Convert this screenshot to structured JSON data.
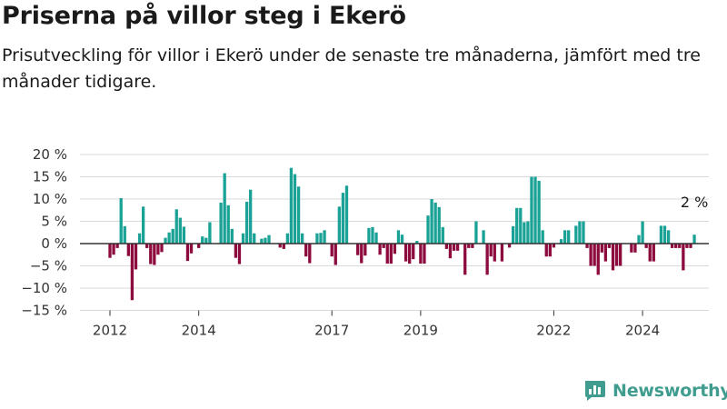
{
  "header": {
    "title": "Priserna på villor steg i Ekerö",
    "subtitle": "Prisutveckling för villor i Ekerö under de senaste tre månaderna, jämfört med tre månader tidigare."
  },
  "brand": {
    "name": "Newsworthy",
    "icon": "bar-chart-logo-icon"
  },
  "colors": {
    "positive": "#1aa296",
    "negative": "#8c0a3d",
    "axis": "#333333",
    "grid": "#d9d9d9",
    "brand": "#3f9c8e"
  },
  "chart_data": {
    "type": "bar",
    "series_name": "",
    "ylim": [
      -15,
      20
    ],
    "y_ticks": [
      20,
      15,
      10,
      5,
      0,
      -5,
      -10,
      -15
    ],
    "y_tick_labels": [
      "20 %",
      "15 %",
      "10 %",
      "5 %",
      "0 %",
      "−5 %",
      "−10 %",
      "−15 %"
    ],
    "x_start": "2012-01",
    "x_ticks": [
      {
        "label": "2012",
        "date": "2012-01"
      },
      {
        "label": "2014",
        "date": "2014-01"
      },
      {
        "label": "2017",
        "date": "2017-01"
      },
      {
        "label": "2019",
        "date": "2019-01"
      },
      {
        "label": "2022",
        "date": "2022-01"
      },
      {
        "label": "2024",
        "date": "2024-01"
      }
    ],
    "values": [
      -3.2,
      -2.5,
      -1.0,
      10.2,
      3.9,
      -2.8,
      -12.7,
      -5.8,
      2.3,
      8.3,
      -1.0,
      -4.6,
      -4.8,
      -2.5,
      -1.9,
      1.3,
      2.5,
      3.3,
      7.7,
      5.8,
      3.8,
      -3.9,
      -2.2,
      0,
      -1.0,
      1.6,
      1.3,
      4.8,
      0,
      0,
      9.2,
      15.8,
      8.6,
      3.3,
      -3.2,
      -4.6,
      2.3,
      9.4,
      12.1,
      2.3,
      0,
      1.1,
      1.3,
      1.9,
      0,
      0,
      -0.9,
      -1.2,
      2.3,
      17.0,
      15.6,
      12.8,
      2.3,
      -2.9,
      -4.4,
      0,
      2.3,
      2.4,
      3.0,
      0,
      -2.9,
      -4.8,
      8.3,
      11.4,
      13.0,
      0,
      0,
      -2.6,
      -4.4,
      -2.7,
      3.5,
      3.7,
      2.5,
      -2.5,
      -1.0,
      -4.5,
      -4.5,
      -2.3,
      3.0,
      2.0,
      -4.0,
      -4.5,
      -3.5,
      0.6,
      -4.5,
      -4.5,
      6.3,
      10.0,
      9.2,
      8.2,
      3.7,
      -1.2,
      -3.3,
      -1.6,
      -1.6,
      0,
      -7.0,
      -1.0,
      -1.0,
      5.0,
      0,
      3.0,
      -7.0,
      -2.9,
      -4.0,
      0,
      -4.0,
      0,
      -0.9,
      3.9,
      8.0,
      8.0,
      4.8,
      5.0,
      15.0,
      15.0,
      14.1,
      3.0,
      -2.9,
      -2.9,
      -0.9,
      0,
      1.0,
      3.0,
      3.0,
      0,
      4.0,
      5.0,
      5.0,
      -1.0,
      -5.0,
      -5.0,
      -7.0,
      -2.0,
      -4.0,
      -1.0,
      -6.0,
      -5.0,
      -5.0,
      0,
      0,
      -2.0,
      -2.0,
      1.9,
      5.0,
      -1.0,
      -4.0,
      -4.0,
      0,
      4.0,
      4.0,
      3.0,
      -1.0,
      -1.0,
      -1.0,
      -6.0,
      -1.0,
      -1.0,
      2.0
    ],
    "annotation": {
      "label": "2 %",
      "value": 2
    }
  }
}
